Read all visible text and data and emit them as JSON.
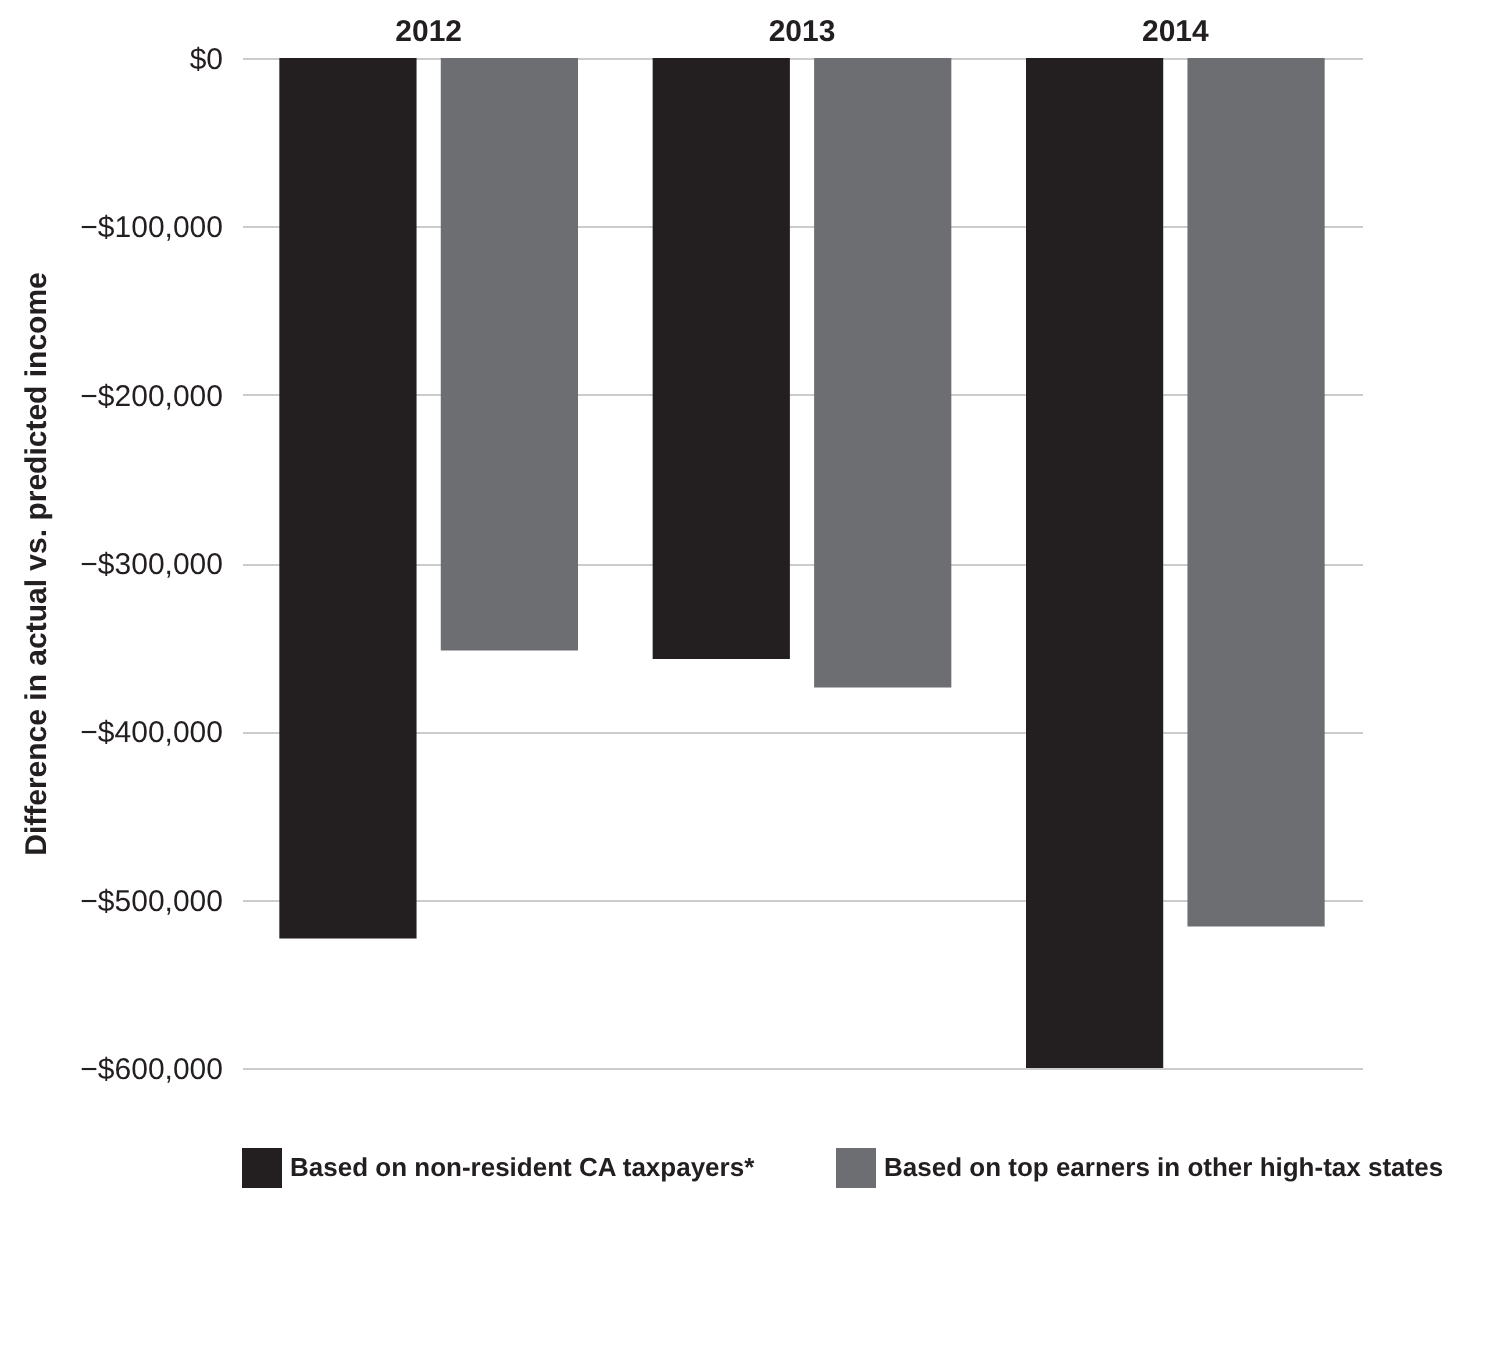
{
  "chart_data": {
    "type": "bar",
    "ylabel": "Difference in actual vs. predicted income",
    "categories": [
      "2012",
      "2013",
      "2014"
    ],
    "series": [
      {
        "name": "Based on non-resident CA taxpayers*",
        "color": "#231f20",
        "values": [
          -523000,
          -357000,
          -600000
        ]
      },
      {
        "name": "Based on top earners in other high-tax states",
        "color": "#6d6e71",
        "values": [
          -352000,
          -374000,
          -516000
        ]
      }
    ],
    "ylim": [
      -600000,
      0
    ],
    "yticks": [
      {
        "value": 0,
        "label": "$0"
      },
      {
        "value": -100000,
        "label": "−$100,000"
      },
      {
        "value": -200000,
        "label": "−$200,000"
      },
      {
        "value": -300000,
        "label": "−$300,000"
      },
      {
        "value": -400000,
        "label": "−$400,000"
      },
      {
        "value": -500000,
        "label": "−$500,000"
      },
      {
        "value": -600000,
        "label": "−$600,000"
      }
    ],
    "grid": "y",
    "legend": "bottom"
  }
}
